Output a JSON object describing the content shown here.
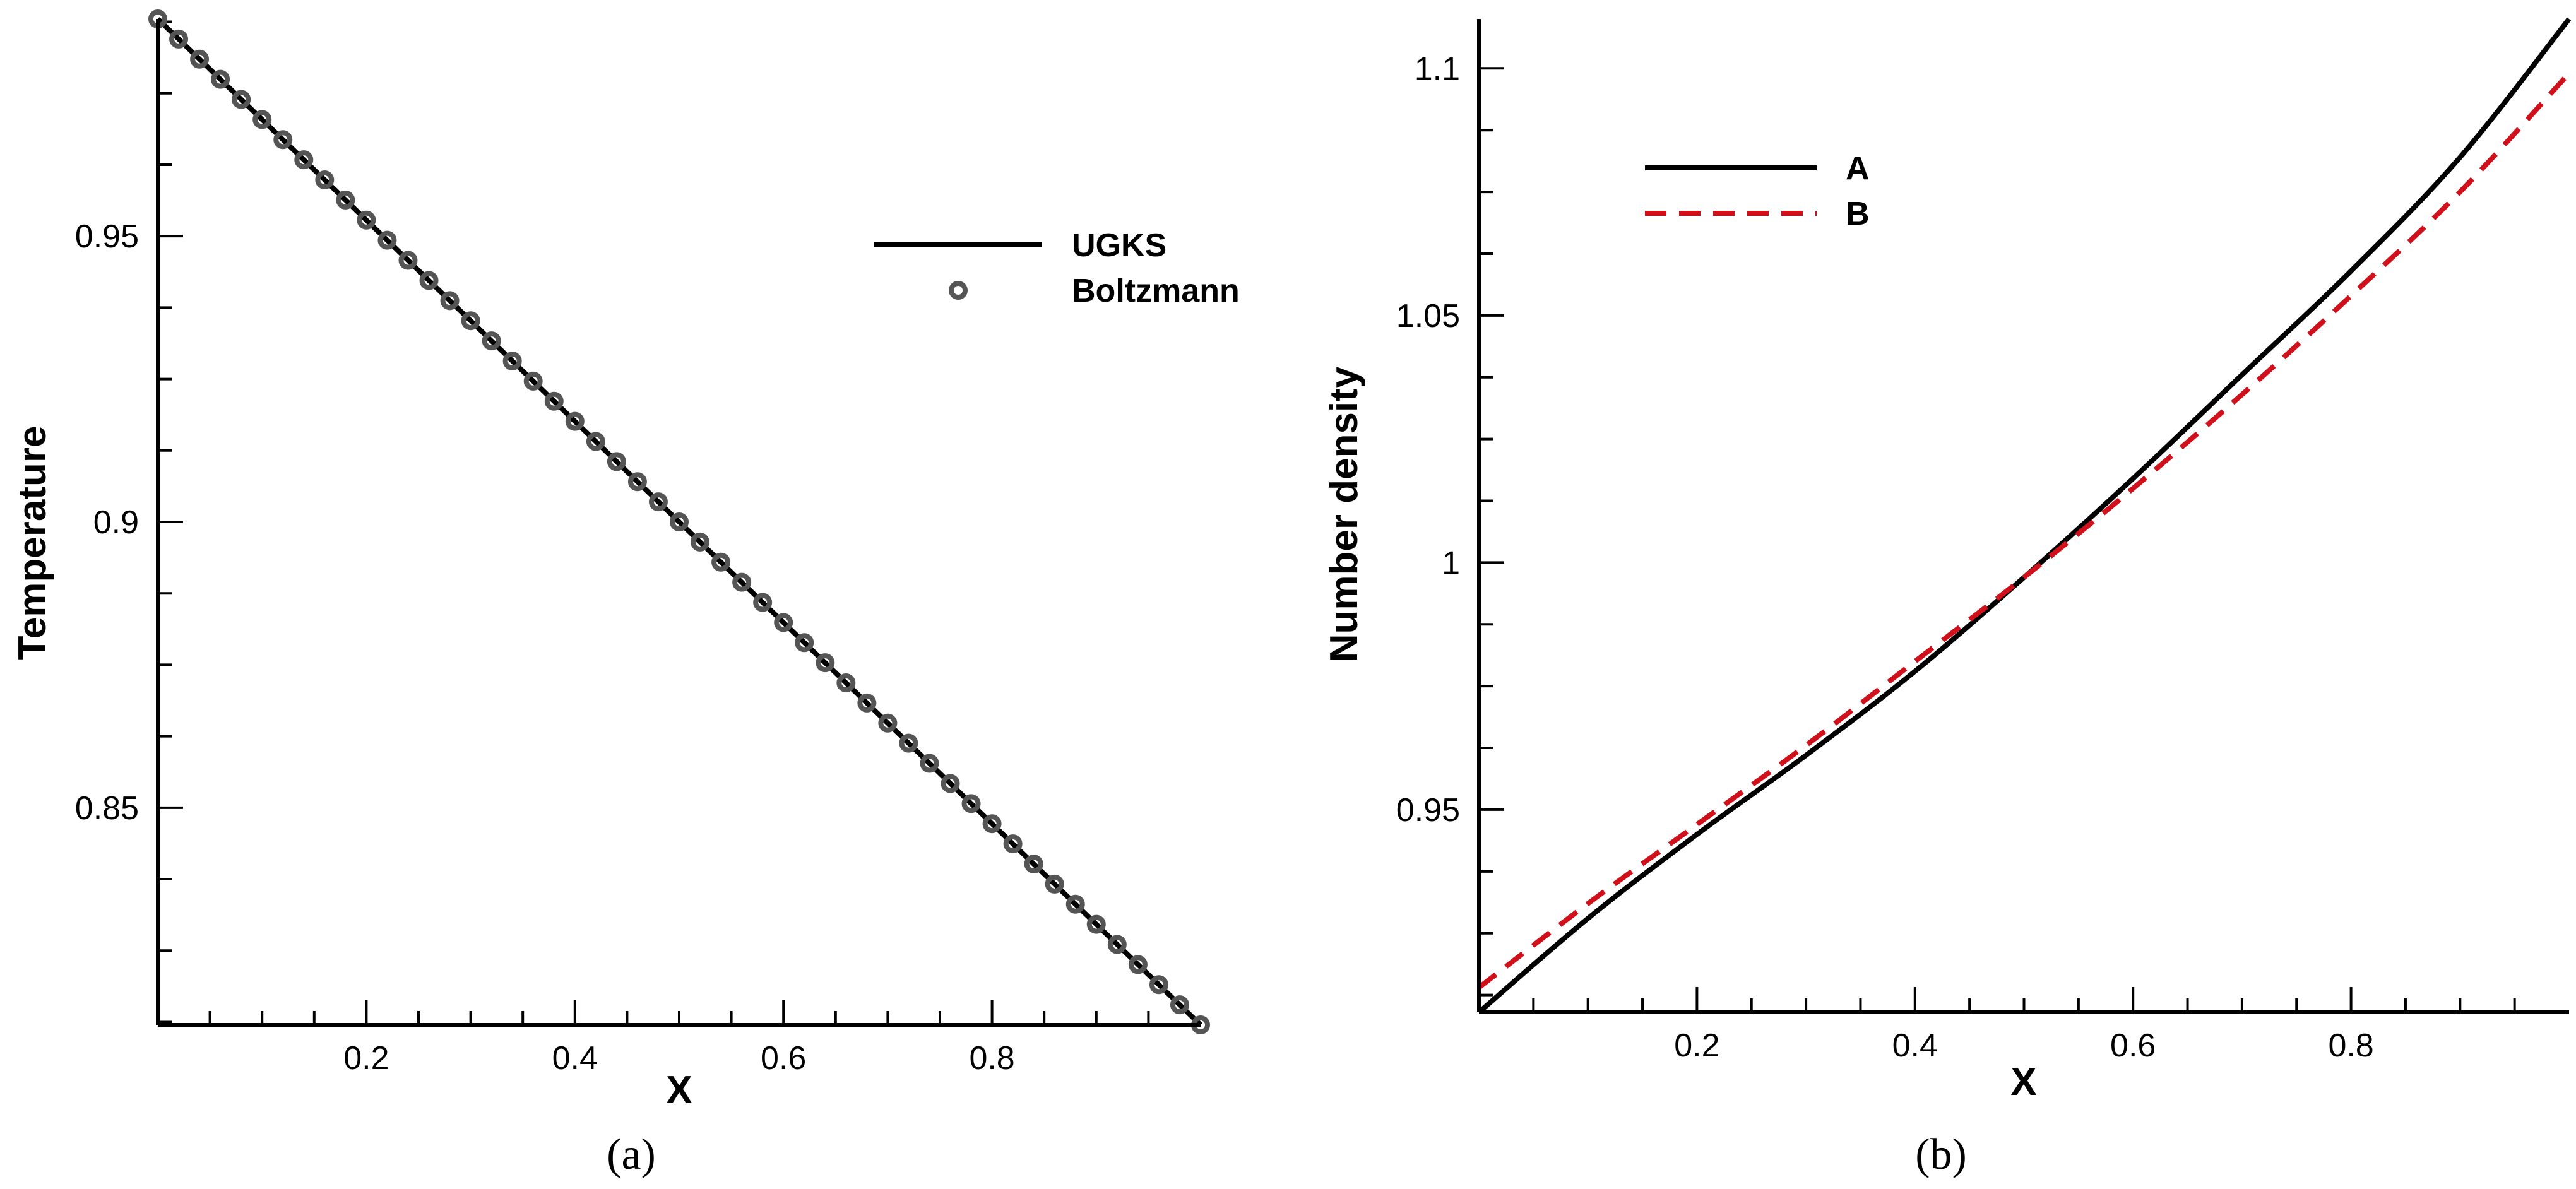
{
  "chart_data": [
    {
      "type": "line",
      "panel_caption": "(a)",
      "xlabel": "X",
      "ylabel": "Temperature",
      "xlim": [
        0,
        1
      ],
      "ylim": [
        0.812,
        0.988
      ],
      "xticks": [
        0.2,
        0.4,
        0.6,
        0.8
      ],
      "xtick_labels": [
        "0.2",
        "0.4",
        "0.6",
        "0.8"
      ],
      "xminor_step": 0.05,
      "yticks": [
        0.85,
        0.9,
        0.95
      ],
      "ytick_labels": [
        "0.85",
        "0.9",
        "0.95"
      ],
      "yminor_step": 0.0125,
      "grid": false,
      "legend_position": "top-right",
      "series": [
        {
          "name": "UGKS",
          "style": "solid-line",
          "color": "#000000",
          "x": [
            0.0,
            1.0
          ],
          "y": [
            0.988,
            0.812
          ]
        },
        {
          "name": "Boltzmann",
          "style": "circle-markers",
          "color": "#555555",
          "x_start": 0.0,
          "x_end": 1.0,
          "count": 51,
          "y_start": 0.988,
          "y_end": 0.812
        }
      ]
    },
    {
      "type": "line",
      "panel_caption": "(b)",
      "xlabel": "X",
      "ylabel": "Number density",
      "xlim": [
        0,
        1
      ],
      "ylim": [
        0.909,
        1.11
      ],
      "xticks": [
        0.2,
        0.4,
        0.6,
        0.8
      ],
      "xtick_labels": [
        "0.2",
        "0.4",
        "0.6",
        "0.8"
      ],
      "xminor_step": 0.05,
      "yticks": [
        0.95,
        1,
        1.05,
        1.1
      ],
      "ytick_labels": [
        "0.95",
        "1",
        "1.05",
        "1.1"
      ],
      "yminor_step": 0.0125,
      "grid": false,
      "legend_position": "top-left",
      "series": [
        {
          "name": "A",
          "style": "solid-line",
          "color": "#000000",
          "x": [
            0.0,
            0.1,
            0.2,
            0.3,
            0.4,
            0.5,
            0.6,
            0.7,
            0.8,
            0.9,
            1.0
          ],
          "y": [
            0.909,
            0.928,
            0.945,
            0.961,
            0.978,
            0.997,
            1.017,
            1.038,
            1.059,
            1.082,
            1.11
          ]
        },
        {
          "name": "B",
          "style": "dashed-line",
          "color": "#d0101a",
          "x": [
            0.0,
            0.1,
            0.2,
            0.3,
            0.4,
            0.5,
            0.6,
            0.7,
            0.8,
            0.9,
            1.0
          ],
          "y": [
            0.914,
            0.931,
            0.947,
            0.963,
            0.98,
            0.997,
            1.015,
            1.034,
            1.054,
            1.075,
            1.099
          ]
        }
      ]
    }
  ]
}
